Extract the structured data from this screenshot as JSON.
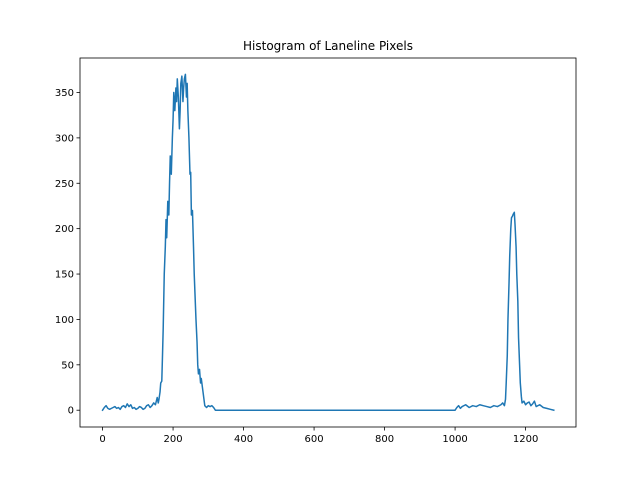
{
  "chart_data": {
    "type": "line",
    "title": "Histogram of Laneline Pixels",
    "xlabel": "",
    "ylabel": "",
    "xlim": [
      -64,
      1343
    ],
    "ylim": [
      -18.5,
      388
    ],
    "xticks": [
      0,
      200,
      400,
      600,
      800,
      1000,
      1200
    ],
    "yticks": [
      0,
      50,
      100,
      150,
      200,
      250,
      300,
      350
    ],
    "grid": false,
    "legend": "none",
    "colors": {
      "line": "#1f77b4",
      "axes": "#000000",
      "background": "#ffffff"
    },
    "series": [
      {
        "x": [
          0,
          5,
          10,
          15,
          20,
          25,
          30,
          35,
          40,
          45,
          50,
          55,
          60,
          65,
          70,
          75,
          80,
          85,
          90,
          95,
          100,
          105,
          110,
          115,
          120,
          125,
          130,
          135,
          140,
          145,
          150,
          155,
          158,
          160,
          163,
          165,
          168,
          170,
          172,
          175,
          178,
          180,
          182,
          185,
          188,
          190,
          192,
          195,
          198,
          200,
          202,
          205,
          208,
          210,
          212,
          215,
          218,
          220,
          222,
          225,
          228,
          230,
          232,
          235,
          238,
          240,
          242,
          245,
          248,
          250,
          252,
          255,
          258,
          260,
          262,
          265,
          268,
          270,
          272,
          275,
          278,
          280,
          285,
          290,
          295,
          300,
          305,
          310,
          315,
          320,
          400,
          500,
          600,
          700,
          800,
          900,
          995,
          1000,
          1005,
          1010,
          1015,
          1020,
          1030,
          1040,
          1050,
          1060,
          1070,
          1080,
          1090,
          1100,
          1110,
          1120,
          1130,
          1135,
          1140,
          1143,
          1145,
          1148,
          1150,
          1153,
          1155,
          1158,
          1160,
          1163,
          1165,
          1168,
          1170,
          1173,
          1175,
          1178,
          1180,
          1183,
          1185,
          1188,
          1190,
          1195,
          1200,
          1205,
          1210,
          1215,
          1220,
          1225,
          1230,
          1240,
          1250,
          1260,
          1270,
          1280
        ],
        "y": [
          0,
          3,
          5,
          2,
          1,
          2,
          3,
          4,
          2,
          3,
          1,
          4,
          5,
          3,
          7,
          4,
          6,
          2,
          3,
          1,
          2,
          4,
          3,
          1,
          2,
          5,
          6,
          3,
          5,
          8,
          6,
          14,
          8,
          12,
          20,
          30,
          32,
          60,
          90,
          150,
          180,
          210,
          190,
          230,
          215,
          250,
          280,
          260,
          300,
          320,
          350,
          330,
          355,
          340,
          365,
          345,
          310,
          330,
          360,
          368,
          340,
          355,
          365,
          370,
          345,
          360,
          330,
          300,
          260,
          262,
          215,
          220,
          180,
          150,
          130,
          100,
          75,
          50,
          40,
          45,
          30,
          35,
          20,
          5,
          3,
          5,
          4,
          5,
          3,
          0,
          0,
          0,
          0,
          0,
          0,
          0,
          0,
          0,
          3,
          5,
          2,
          4,
          6,
          3,
          5,
          4,
          6,
          5,
          4,
          3,
          5,
          4,
          6,
          8,
          5,
          12,
          30,
          60,
          100,
          140,
          170,
          200,
          212,
          214,
          216,
          218,
          205,
          180,
          150,
          120,
          80,
          50,
          30,
          15,
          8,
          10,
          6,
          8,
          9,
          5,
          7,
          10,
          4,
          6,
          3,
          2,
          1,
          0
        ]
      }
    ]
  }
}
